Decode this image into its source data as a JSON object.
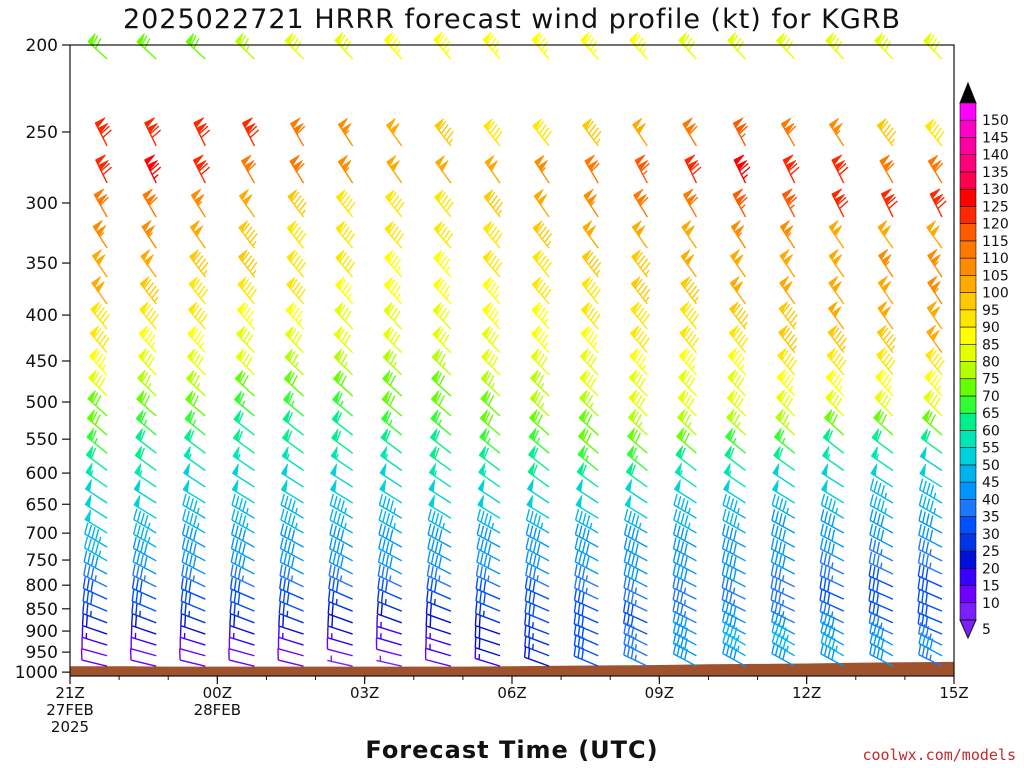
{
  "chart_data": {
    "type": "wind-barb-profile",
    "title": "2025022721 HRRR forecast wind profile (kt) for KGRB",
    "xlabel": "Forecast Time (UTC)",
    "ylabel": "",
    "credit": "coolwx.com/models",
    "y_scale": "pressure (log-like), inverted",
    "ylim": [
      1000,
      200
    ],
    "y_ticks": [
      200,
      250,
      300,
      350,
      400,
      450,
      500,
      550,
      600,
      650,
      700,
      750,
      800,
      850,
      900,
      950,
      1000
    ],
    "x_range_hours": [
      0,
      18
    ],
    "x_ticks": [
      {
        "hour": 0,
        "lines": [
          "21Z",
          "27FEB",
          "2025"
        ]
      },
      {
        "hour": 3,
        "lines": [
          "00Z",
          "28FEB"
        ]
      },
      {
        "hour": 6,
        "lines": [
          "03Z"
        ]
      },
      {
        "hour": 9,
        "lines": [
          "06Z"
        ]
      },
      {
        "hour": 12,
        "lines": [
          "09Z"
        ]
      },
      {
        "hour": 15,
        "lines": [
          "12Z"
        ]
      },
      {
        "hour": 18,
        "lines": [
          "15Z"
        ]
      }
    ],
    "forecast_hours": [
      1,
      2,
      3,
      4,
      5,
      6,
      7,
      8,
      9,
      10,
      11,
      12,
      13,
      14,
      15,
      16,
      17,
      18
    ],
    "levels": [
      200,
      250,
      275,
      300,
      325,
      350,
      375,
      400,
      425,
      450,
      475,
      500,
      525,
      550,
      575,
      600,
      625,
      650,
      675,
      700,
      725,
      750,
      775,
      800,
      825,
      850,
      875,
      900,
      925,
      950,
      975
    ],
    "surface_pressure_hpa": [
      985,
      986,
      986,
      986,
      986,
      986,
      986,
      986,
      985,
      984,
      983,
      982,
      980,
      979,
      978,
      976,
      975,
      974
    ],
    "wind_speed_by_level_kt": {
      "200": [
        72,
        72,
        72,
        74,
        78,
        82,
        84,
        86,
        87,
        86,
        84,
        83,
        82,
        81,
        80,
        80,
        79,
        78
      ],
      "250": [
        118,
        120,
        122,
        118,
        112,
        104,
        98,
        94,
        92,
        92,
        96,
        102,
        108,
        116,
        110,
        104,
        96,
        90
      ],
      "275": [
        120,
        124,
        118,
        112,
        108,
        104,
        100,
        98,
        100,
        104,
        110,
        116,
        120,
        124,
        122,
        118,
        112,
        108
      ],
      "300": [
        112,
        110,
        106,
        100,
        96,
        92,
        92,
        92,
        94,
        100,
        104,
        108,
        112,
        114,
        116,
        118,
        120,
        118
      ],
      "325": [
        106,
        104,
        100,
        96,
        92,
        90,
        88,
        88,
        90,
        94,
        98,
        100,
        102,
        104,
        104,
        102,
        100,
        98
      ],
      "350": [
        102,
        98,
        96,
        94,
        90,
        88,
        86,
        86,
        88,
        92,
        94,
        96,
        98,
        100,
        102,
        102,
        104,
        104
      ],
      "375": [
        98,
        94,
        92,
        90,
        88,
        86,
        84,
        84,
        86,
        88,
        92,
        94,
        96,
        98,
        100,
        100,
        102,
        104
      ],
      "400": [
        92,
        90,
        88,
        86,
        84,
        82,
        82,
        82,
        84,
        86,
        88,
        90,
        92,
        94,
        96,
        98,
        100,
        102
      ],
      "425": [
        88,
        86,
        84,
        82,
        80,
        78,
        78,
        80,
        82,
        84,
        86,
        88,
        90,
        92,
        94,
        96,
        96,
        98
      ],
      "450": [
        84,
        82,
        80,
        78,
        76,
        76,
        76,
        76,
        78,
        80,
        82,
        84,
        86,
        86,
        88,
        90,
        92,
        92
      ],
      "475": [
        78,
        76,
        74,
        72,
        72,
        72,
        72,
        72,
        74,
        76,
        78,
        80,
        82,
        82,
        84,
        84,
        86,
        86
      ],
      "500": [
        72,
        70,
        68,
        66,
        66,
        66,
        68,
        70,
        72,
        74,
        76,
        78,
        78,
        78,
        80,
        80,
        80,
        80
      ],
      "525": [
        68,
        66,
        64,
        62,
        62,
        62,
        64,
        66,
        68,
        70,
        72,
        74,
        74,
        74,
        74,
        72,
        72,
        70
      ],
      "550": [
        64,
        62,
        60,
        58,
        58,
        58,
        60,
        62,
        64,
        66,
        68,
        68,
        68,
        66,
        64,
        62,
        60,
        58
      ],
      "575": [
        60,
        58,
        56,
        54,
        54,
        54,
        56,
        58,
        60,
        62,
        64,
        64,
        62,
        60,
        58,
        56,
        54,
        52
      ],
      "600": [
        56,
        54,
        52,
        50,
        50,
        50,
        52,
        54,
        56,
        58,
        58,
        58,
        56,
        54,
        52,
        50,
        50,
        48
      ],
      "625": [
        52,
        50,
        48,
        48,
        48,
        48,
        50,
        50,
        52,
        52,
        52,
        52,
        50,
        50,
        48,
        48,
        46,
        46
      ],
      "650": [
        50,
        48,
        46,
        46,
        46,
        46,
        46,
        48,
        48,
        48,
        48,
        48,
        46,
        46,
        46,
        46,
        44,
        44
      ],
      "675": [
        48,
        46,
        44,
        44,
        44,
        44,
        44,
        44,
        44,
        44,
        44,
        44,
        44,
        44,
        42,
        42,
        42,
        40
      ],
      "700": [
        46,
        44,
        42,
        42,
        42,
        42,
        42,
        42,
        42,
        42,
        42,
        42,
        42,
        40,
        40,
        40,
        40,
        38
      ],
      "725": [
        44,
        42,
        40,
        40,
        40,
        40,
        40,
        40,
        40,
        40,
        40,
        40,
        40,
        40,
        38,
        38,
        36,
        36
      ],
      "750": [
        40,
        40,
        38,
        38,
        38,
        38,
        38,
        38,
        38,
        38,
        40,
        40,
        40,
        38,
        38,
        36,
        34,
        34
      ],
      "775": [
        36,
        36,
        34,
        34,
        34,
        34,
        34,
        34,
        34,
        36,
        36,
        38,
        38,
        38,
        36,
        34,
        32,
        32
      ],
      "800": [
        32,
        32,
        30,
        30,
        30,
        30,
        30,
        30,
        30,
        32,
        34,
        36,
        36,
        36,
        34,
        32,
        30,
        30
      ],
      "825": [
        28,
        28,
        28,
        28,
        28,
        26,
        26,
        26,
        28,
        30,
        32,
        34,
        36,
        36,
        34,
        32,
        30,
        28
      ],
      "850": [
        24,
        24,
        24,
        24,
        24,
        22,
        22,
        22,
        24,
        28,
        30,
        32,
        36,
        38,
        36,
        34,
        32,
        28
      ],
      "875": [
        20,
        20,
        20,
        20,
        18,
        18,
        16,
        18,
        20,
        24,
        28,
        32,
        38,
        40,
        40,
        38,
        34,
        30
      ],
      "900": [
        16,
        16,
        16,
        16,
        16,
        14,
        14,
        16,
        18,
        24,
        30,
        36,
        40,
        44,
        44,
        42,
        40,
        36
      ],
      "925": [
        12,
        12,
        12,
        12,
        12,
        10,
        10,
        14,
        18,
        24,
        30,
        36,
        40,
        44,
        46,
        44,
        42,
        40
      ],
      "950": [
        8,
        8,
        8,
        8,
        8,
        6,
        6,
        10,
        16,
        22,
        28,
        34,
        40,
        42,
        42,
        40,
        38,
        36
      ],
      "975": [
        null,
        null,
        null,
        null,
        null,
        null,
        5,
        8,
        14,
        20,
        26,
        30,
        34,
        36,
        36,
        34,
        32,
        30
      ]
    },
    "colorbar": {
      "ticks": [
        5,
        10,
        15,
        20,
        25,
        30,
        35,
        40,
        45,
        50,
        55,
        60,
        65,
        70,
        75,
        80,
        85,
        90,
        95,
        100,
        105,
        110,
        115,
        120,
        125,
        130,
        135,
        140,
        145,
        150
      ],
      "colors": [
        "#7a1fff",
        "#6f00ff",
        "#3a00ff",
        "#0010d8",
        "#0034e8",
        "#0050ff",
        "#1e78ff",
        "#0096ff",
        "#00b4f0",
        "#00d2dc",
        "#00e6b4",
        "#00f08c",
        "#32ff32",
        "#64ff00",
        "#b4ff00",
        "#e6ff00",
        "#ffff00",
        "#ffe600",
        "#ffc800",
        "#ffaa00",
        "#ff8c00",
        "#ff7800",
        "#ff5a00",
        "#ff2800",
        "#ff0000",
        "#ff0050",
        "#ff0078",
        "#ff00a0",
        "#ff00c8",
        "#ff00ff"
      ]
    },
    "ground_color": "#a0522d",
    "grid": false,
    "legend": "right colorbar"
  }
}
